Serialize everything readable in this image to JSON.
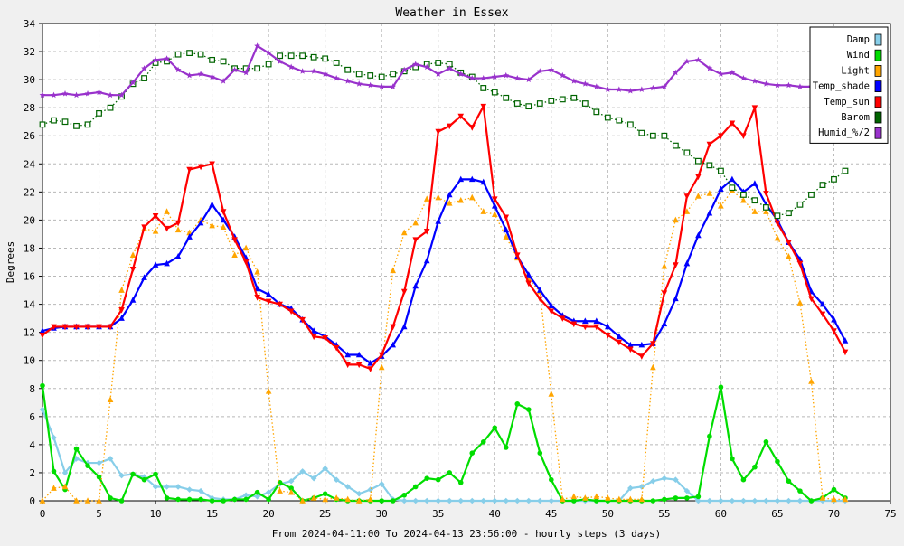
{
  "chart_data": {
    "type": "line",
    "title": "Weather in Essex",
    "xlabel": "From 2024-04-11:00 To 2024-04-13 23:56:00 - hourly steps (3 days)",
    "ylabel": "Degrees",
    "xlim": [
      0,
      75
    ],
    "ylim": [
      0,
      34
    ],
    "xticks": [
      0,
      5,
      10,
      15,
      20,
      25,
      30,
      35,
      40,
      45,
      50,
      55,
      60,
      65,
      70,
      75
    ],
    "yticks": [
      0,
      2,
      4,
      6,
      8,
      10,
      12,
      14,
      16,
      18,
      20,
      22,
      24,
      26,
      28,
      30,
      32,
      34
    ],
    "grid": true,
    "legend_position": "top-right",
    "x": [
      0,
      1,
      2,
      3,
      4,
      5,
      6,
      7,
      8,
      9,
      10,
      11,
      12,
      13,
      14,
      15,
      16,
      17,
      18,
      19,
      20,
      21,
      22,
      23,
      24,
      25,
      26,
      27,
      28,
      29,
      30,
      31,
      32,
      33,
      34,
      35,
      36,
      37,
      38,
      39,
      40,
      41,
      42,
      43,
      44,
      45,
      46,
      47,
      48,
      49,
      50,
      51,
      52,
      53,
      54,
      55,
      56,
      57,
      58,
      59,
      60,
      61,
      62,
      63,
      64,
      65,
      66,
      67,
      68,
      69,
      70,
      71
    ],
    "series": [
      {
        "name": "Damp",
        "color": "#87cee9",
        "marker": "diamond",
        "style": "solid",
        "values": [
          6.5,
          4.5,
          2,
          3,
          2.7,
          2.7,
          3,
          1.8,
          1.9,
          1.7,
          1,
          1,
          1,
          0.8,
          0.7,
          0.2,
          0.1,
          0.1,
          0.4,
          0.3,
          0.6,
          1.2,
          1.4,
          2.1,
          1.6,
          2.3,
          1.5,
          1,
          0.5,
          0.8,
          1.2,
          0.1,
          0,
          0,
          0,
          0,
          0,
          0,
          0,
          0,
          0,
          0,
          0,
          0,
          0,
          0,
          0,
          0,
          0,
          0,
          0,
          0,
          0.9,
          1,
          1.4,
          1.6,
          1.5,
          0.7,
          0,
          0,
          0,
          0,
          0,
          0,
          0,
          0,
          0,
          0,
          0,
          0,
          0,
          0
        ]
      },
      {
        "name": "Wind",
        "color": "#00dd00",
        "marker": "circle",
        "style": "solid",
        "values": [
          8.2,
          2.1,
          0.8,
          3.7,
          2.5,
          1.7,
          0.2,
          0,
          1.9,
          1.5,
          1.9,
          0.2,
          0.1,
          0.1,
          0.1,
          0,
          0,
          0.1,
          0.1,
          0.6,
          0.1,
          1.3,
          0.9,
          0,
          0.2,
          0.5,
          0.1,
          0,
          0,
          0,
          0,
          0,
          0.4,
          1,
          1.6,
          1.5,
          2,
          1.3,
          3.4,
          4.2,
          5.2,
          3.8,
          6.9,
          6.5,
          3.4,
          1.5,
          0,
          0,
          0.1,
          0,
          0,
          0,
          0,
          0,
          0,
          0.1,
          0.2,
          0.2,
          0.3,
          4.6,
          8.1,
          3,
          1.5,
          2.4,
          4.2,
          2.8,
          1.4,
          0.7,
          0,
          0.2,
          0.8,
          0.2
        ]
      },
      {
        "name": "Light",
        "color": "#ffa500",
        "marker": "triangle-up",
        "style": "dotted",
        "values": [
          0,
          0.9,
          1,
          0,
          0,
          0,
          7.2,
          15,
          17.5,
          19.4,
          19.2,
          20.6,
          19.3,
          19.1,
          20,
          19.6,
          19.5,
          17.5,
          18,
          16.3,
          7.8,
          0.7,
          0.6,
          0,
          0.2,
          0.1,
          0.2,
          0.1,
          0,
          0.1,
          9.5,
          16.4,
          19.1,
          19.8,
          21.5,
          21.6,
          21.2,
          21.4,
          21.6,
          20.6,
          20.4,
          18.8,
          17.3,
          15.8,
          14.9,
          7.6,
          0.1,
          0.3,
          0.2,
          0.3,
          0.2,
          0.1,
          0.1,
          0.1,
          9.5,
          16.7,
          20,
          20.6,
          21.7,
          21.9,
          21,
          22.1,
          21.4,
          20.6,
          20.6,
          18.7,
          17.4,
          14.1,
          8.5,
          0.2,
          0.1,
          0.1
        ]
      },
      {
        "name": "Temp_shade",
        "color": "#0000ff",
        "marker": "triangle-up",
        "style": "solid",
        "values": [
          12.1,
          12.3,
          12.4,
          12.4,
          12.4,
          12.4,
          12.4,
          13,
          14.3,
          15.9,
          16.8,
          16.9,
          17.4,
          18.8,
          19.8,
          21.1,
          20,
          18.8,
          17.3,
          15.1,
          14.7,
          14,
          13.7,
          12.9,
          12.1,
          11.7,
          11.1,
          10.4,
          10.4,
          9.8,
          10.3,
          11.1,
          12.4,
          15.3,
          17.1,
          19.9,
          21.8,
          22.9,
          22.9,
          22.7,
          21,
          19.3,
          17.4,
          16.1,
          15,
          13.9,
          13.2,
          12.8,
          12.8,
          12.8,
          12.4,
          11.7,
          11.1,
          11.1,
          11.2,
          12.6,
          14.4,
          16.9,
          18.9,
          20.5,
          22.2,
          22.9,
          22,
          22.6,
          21.1,
          20,
          18.4,
          17.2,
          14.9,
          14,
          12.9,
          11.4
        ]
      },
      {
        "name": "Temp_sun",
        "color": "#ff0000",
        "marker": "triangle-down",
        "style": "solid",
        "values": [
          11.8,
          12.4,
          12.4,
          12.4,
          12.4,
          12.4,
          12.4,
          13.6,
          16.5,
          19.5,
          20.3,
          19.4,
          19.8,
          23.6,
          23.8,
          24,
          20.6,
          18.6,
          17,
          14.5,
          14.2,
          14,
          13.5,
          12.9,
          11.7,
          11.6,
          10.9,
          9.7,
          9.7,
          9.4,
          10.4,
          12.4,
          14.9,
          18.6,
          19.2,
          26.3,
          26.7,
          27.4,
          26.6,
          28.1,
          21.5,
          20.2,
          17.5,
          15.5,
          14.4,
          13.5,
          13,
          12.6,
          12.4,
          12.4,
          11.8,
          11.3,
          10.8,
          10.3,
          11.2,
          14.8,
          16.8,
          21.7,
          23.1,
          25.4,
          26,
          26.9,
          26,
          28,
          21.9,
          19.8,
          18.4,
          16.9,
          14.4,
          13.3,
          12.1,
          10.6
        ]
      },
      {
        "name": "Barom",
        "color": "#006400",
        "marker": "square",
        "style": "dotted",
        "values": [
          26.8,
          27.1,
          27,
          26.7,
          26.8,
          27.6,
          28,
          28.8,
          29.7,
          30.1,
          31.2,
          31.3,
          31.8,
          31.9,
          31.8,
          31.4,
          31.3,
          30.8,
          30.8,
          30.8,
          31.1,
          31.7,
          31.7,
          31.7,
          31.6,
          31.5,
          31.2,
          30.7,
          30.4,
          30.3,
          30.2,
          30.4,
          30.6,
          30.9,
          31.1,
          31.2,
          31.1,
          30.5,
          30.2,
          29.4,
          29.1,
          28.7,
          28.3,
          28.1,
          28.3,
          28.5,
          28.6,
          28.7,
          28.3,
          27.7,
          27.3,
          27.1,
          26.8,
          26.2,
          26,
          26,
          25.3,
          24.8,
          24.2,
          23.9,
          23.5,
          22.3,
          21.8,
          21.4,
          20.9,
          20.3,
          20.5,
          21.1,
          21.8,
          22.5,
          22.9,
          23.5
        ]
      },
      {
        "name": "Humid_%/2",
        "color": "#9932cc",
        "marker": "star",
        "style": "solid",
        "values": [
          28.9,
          28.9,
          29,
          28.9,
          29,
          29.1,
          28.9,
          28.9,
          29.8,
          30.8,
          31.4,
          31.5,
          30.7,
          30.3,
          30.4,
          30.2,
          29.9,
          30.7,
          30.5,
          32.4,
          31.9,
          31.3,
          30.9,
          30.6,
          30.6,
          30.4,
          30.1,
          29.9,
          29.7,
          29.6,
          29.5,
          29.5,
          30.7,
          31.1,
          30.9,
          30.4,
          30.8,
          30.4,
          30.1,
          30.1,
          30.2,
          30.3,
          30.1,
          30,
          30.6,
          30.7,
          30.3,
          29.9,
          29.7,
          29.5,
          29.3,
          29.3,
          29.2,
          29.3,
          29.4,
          29.5,
          30.5,
          31.3,
          31.4,
          30.8,
          30.4,
          30.5,
          30.1,
          29.9,
          29.7,
          29.6,
          29.6,
          29.5,
          29.5,
          29.4,
          29.3,
          29.2
        ]
      }
    ]
  }
}
